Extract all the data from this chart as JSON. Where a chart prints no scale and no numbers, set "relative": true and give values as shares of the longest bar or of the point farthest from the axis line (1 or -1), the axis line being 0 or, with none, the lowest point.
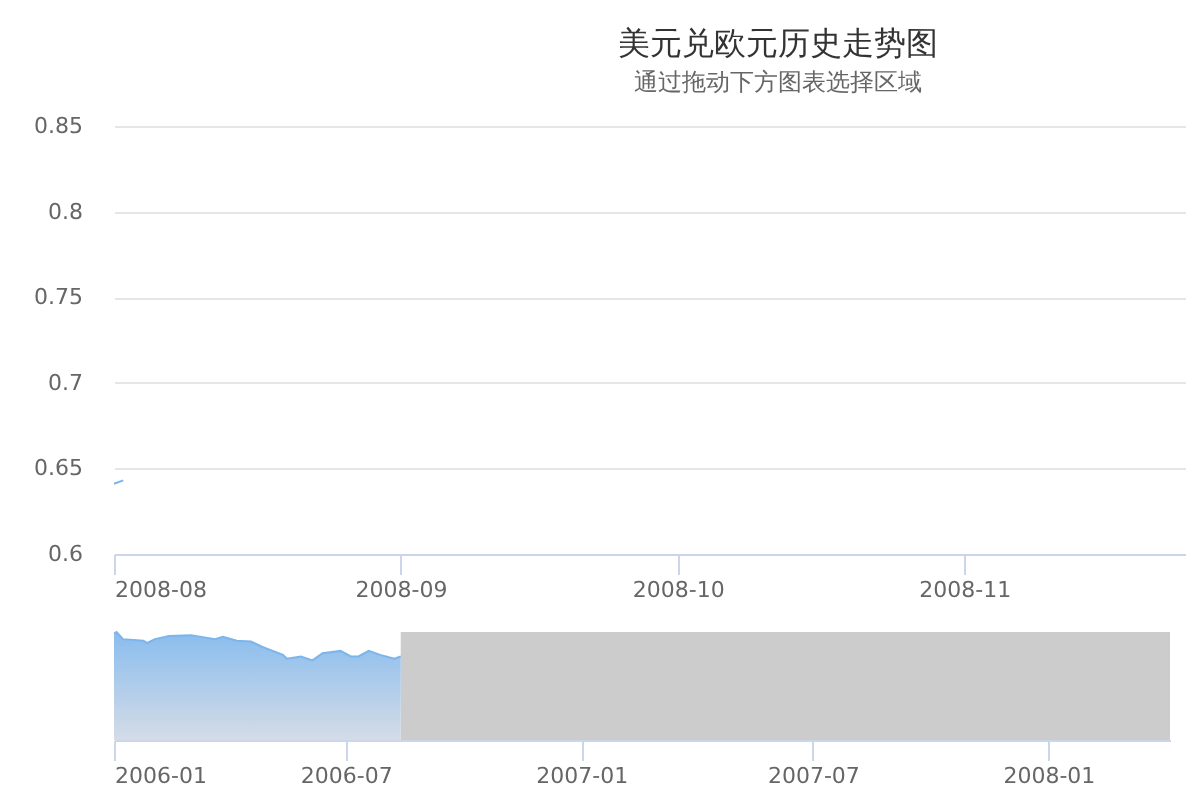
{
  "chart_data": [
    {
      "type": "line",
      "title": "美元兑欧元历史走势图",
      "subtitle": "通过拖动下方图表选择区域",
      "x": [
        "2008-08-01",
        "2008-08-02"
      ],
      "series": [
        {
          "color": "#7cb5ec",
          "values": [
            0.641,
            0.643
          ]
        }
      ],
      "xlim": [
        "2008-08-01",
        "2008-11-25"
      ],
      "xticks": [
        "2008-08",
        "2008-09",
        "2008-10",
        "2008-11"
      ],
      "ylim": [
        0.6,
        0.85
      ],
      "yticks": [
        0.6,
        0.65,
        0.7,
        0.75,
        0.8,
        0.85
      ],
      "grid": "y",
      "legend": false
    },
    {
      "type": "area",
      "relative": true,
      "tick_labels": "x",
      "x": [
        "2006-01-01",
        "2006-01-03",
        "2006-01-08",
        "2006-01-24",
        "2006-01-27",
        "2006-02-02",
        "2006-02-13",
        "2006-03-02",
        "2006-03-21",
        "2006-03-27",
        "2006-04-07",
        "2006-04-18",
        "2006-04-27",
        "2006-05-05",
        "2006-05-13",
        "2006-05-16",
        "2006-05-27",
        "2006-06-05",
        "2006-06-13",
        "2006-06-27",
        "2006-07-05",
        "2006-07-11",
        "2006-07-19",
        "2006-07-28",
        "2006-08-08",
        "2006-08-13"
      ],
      "series": [
        {
          "color": "#7cb5ec",
          "values": [
            0.985,
            1.0,
            0.934,
            0.92,
            0.898,
            0.934,
            0.964,
            0.971,
            0.934,
            0.956,
            0.92,
            0.912,
            0.861,
            0.825,
            0.788,
            0.752,
            0.774,
            0.737,
            0.803,
            0.825,
            0.774,
            0.774,
            0.825,
            0.788,
            0.752,
            0.774
          ]
        }
      ],
      "xlim": [
        "2006-01-01",
        "2008-04-05"
      ],
      "xticks": [
        "2006-01",
        "2006-07",
        "2007-01",
        "2007-07",
        "2008-01"
      ],
      "bands": [
        {
          "axis": "x",
          "from": "2006-08-13",
          "to": "2008-04-05",
          "color": "#cccccc"
        }
      ],
      "legend": false
    }
  ]
}
